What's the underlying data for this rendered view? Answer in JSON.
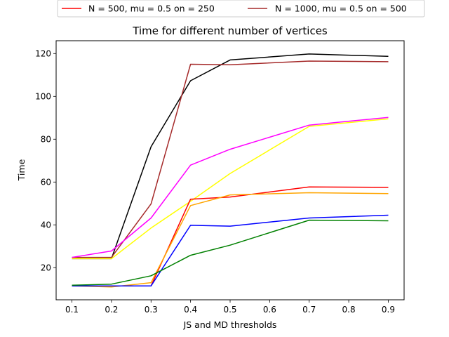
{
  "chart_data": {
    "type": "line",
    "title": "Time for different number of vertices",
    "xlabel": "JS and MD thresholds",
    "ylabel": "Time",
    "xlim": [
      0.06,
      0.94
    ],
    "ylim": [
      5,
      126
    ],
    "xticks": [
      "0.1",
      "0.2",
      "0.3",
      "0.4",
      "0.5",
      "0.6",
      "0.7",
      "0.8",
      "0.9"
    ],
    "yticks": [
      "20",
      "40",
      "60",
      "80",
      "100",
      "120"
    ],
    "grid": false,
    "legend_position": "top, above plot",
    "legend": [
      {
        "label": "N = 500, mu = 0.5 on = 250",
        "color": "#ff0000"
      },
      {
        "label": "N = 1000, mu = 0.5 on = 500",
        "color": "#a52a2a"
      }
    ],
    "x": [
      0.1,
      0.2,
      0.3,
      0.4,
      0.5,
      0.7,
      0.9
    ],
    "series": [
      {
        "color": "#000000",
        "values": [
          24.2,
          24.2,
          76.5,
          107.3,
          117.0,
          119.8,
          118.7
        ]
      },
      {
        "color": "#a52a2a",
        "values": [
          24.8,
          24.8,
          49.8,
          115.0,
          114.8,
          116.5,
          116.2
        ]
      },
      {
        "color": "#ff00ff",
        "values": [
          24.8,
          27.8,
          43.2,
          67.9,
          75.3,
          86.6,
          90.2
        ]
      },
      {
        "color": "#ffff00",
        "values": [
          24.2,
          24.2,
          38.5,
          51.0,
          64.0,
          86.0,
          89.5
        ]
      },
      {
        "color": "#ff0000",
        "values": [
          11.5,
          11.5,
          11.5,
          52.0,
          53.0,
          57.7,
          57.5
        ]
      },
      {
        "color": "#ffa500",
        "values": [
          11.5,
          11.0,
          13.0,
          49.0,
          54.0,
          55.0,
          54.6
        ]
      },
      {
        "color": "#0000ff",
        "values": [
          11.5,
          11.5,
          11.5,
          39.8,
          39.4,
          43.2,
          44.5
        ]
      },
      {
        "color": "#008000",
        "values": [
          11.8,
          12.3,
          16.2,
          25.8,
          30.5,
          42.2,
          41.9
        ]
      }
    ]
  }
}
